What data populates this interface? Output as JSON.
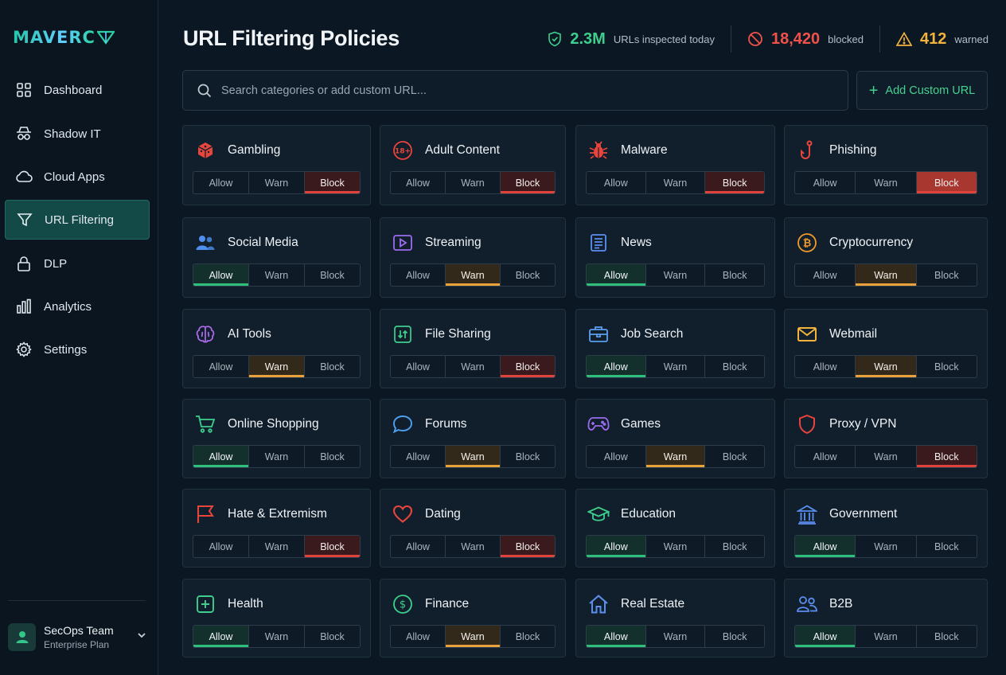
{
  "app": {
    "logo_text": "MAVERC"
  },
  "sidebar": {
    "items": [
      {
        "label": "Dashboard",
        "icon": "grid-icon",
        "active": false
      },
      {
        "label": "Shadow IT",
        "icon": "spy-icon",
        "active": false
      },
      {
        "label": "Cloud Apps",
        "icon": "cloud-icon",
        "active": false
      },
      {
        "label": "URL Filtering",
        "icon": "filter-icon",
        "active": true
      },
      {
        "label": "DLP",
        "icon": "lock-icon",
        "active": false
      },
      {
        "label": "Analytics",
        "icon": "bar-chart-icon",
        "active": false
      },
      {
        "label": "Settings",
        "icon": "gear-icon",
        "active": false
      }
    ],
    "account": {
      "name": "SecOps Team",
      "plan": "Enterprise Plan"
    }
  },
  "header": {
    "title": "URL Filtering Policies",
    "stats": [
      {
        "value": "2.3M",
        "label": "URLs inspected today",
        "color": "#3ecf8e",
        "icon": "shield-check-icon"
      },
      {
        "value": "18,420",
        "label": "blocked",
        "color": "#f0524b",
        "icon": "ban-icon"
      },
      {
        "value": "412",
        "label": "warned",
        "color": "#f3b23c",
        "icon": "warning-icon"
      }
    ]
  },
  "search": {
    "placeholder": "Search categories or add custom URL...",
    "value": ""
  },
  "actions": {
    "add_custom_url": "Add Custom URL"
  },
  "policy_options": [
    "Allow",
    "Warn",
    "Block"
  ],
  "colors": {
    "allow": "#2fbf7d",
    "warn": "#e9a23b",
    "block": "#e0433c",
    "accent": "#134a47"
  },
  "categories": [
    {
      "name": "Gambling",
      "icon": "dice-icon",
      "icon_color": "#e8453c",
      "policy": "Block"
    },
    {
      "name": "Adult Content",
      "icon": "age-18-icon",
      "icon_color": "#e8453c",
      "policy": "Block"
    },
    {
      "name": "Malware",
      "icon": "bug-icon",
      "icon_color": "#e8453c",
      "policy": "Block"
    },
    {
      "name": "Phishing",
      "icon": "hook-icon",
      "icon_color": "#e8453c",
      "policy": "Block"
    },
    {
      "name": "Social Media",
      "icon": "users-icon",
      "icon_color": "#4f8ff0",
      "policy": "Allow"
    },
    {
      "name": "Streaming",
      "icon": "play-icon",
      "icon_color": "#9b6cf0",
      "policy": "Warn"
    },
    {
      "name": "News",
      "icon": "newspaper-icon",
      "icon_color": "#5b8ff0",
      "policy": "Allow"
    },
    {
      "name": "Cryptocurrency",
      "icon": "bitcoin-icon",
      "icon_color": "#f09a2c",
      "policy": "Warn"
    },
    {
      "name": "AI Tools",
      "icon": "brain-icon",
      "icon_color": "#b06cf0",
      "policy": "Warn"
    },
    {
      "name": "File Sharing",
      "icon": "file-transfer-icon",
      "icon_color": "#3ecf8e",
      "policy": "Block"
    },
    {
      "name": "Job Search",
      "icon": "briefcase-icon",
      "icon_color": "#5b9ff0",
      "policy": "Allow"
    },
    {
      "name": "Webmail",
      "icon": "mail-icon",
      "icon_color": "#f3b23c",
      "policy": "Warn"
    },
    {
      "name": "Online Shopping",
      "icon": "cart-icon",
      "icon_color": "#3ecf8e",
      "policy": "Allow"
    },
    {
      "name": "Forums",
      "icon": "chat-bubble-icon",
      "icon_color": "#4f9ff0",
      "policy": "Warn"
    },
    {
      "name": "Games",
      "icon": "gamepad-icon",
      "icon_color": "#9b6cf0",
      "policy": "Warn"
    },
    {
      "name": "Proxy / VPN",
      "icon": "shield-icon",
      "icon_color": "#e8453c",
      "policy": "Block"
    },
    {
      "name": "Hate & Extremism",
      "icon": "flag-icon",
      "icon_color": "#e8453c",
      "policy": "Block"
    },
    {
      "name": "Dating",
      "icon": "heart-icon",
      "icon_color": "#e8453c",
      "policy": "Block"
    },
    {
      "name": "Education",
      "icon": "graduation-cap-icon",
      "icon_color": "#3ecf8e",
      "policy": "Allow"
    },
    {
      "name": "Government",
      "icon": "institution-icon",
      "icon_color": "#5b8ff0",
      "policy": "Allow"
    },
    {
      "name": "Health",
      "icon": "plus-square-icon",
      "icon_color": "#3ecf8e",
      "policy": "Allow"
    },
    {
      "name": "Finance",
      "icon": "dollar-circle-icon",
      "icon_color": "#3ecf8e",
      "policy": "Warn"
    },
    {
      "name": "Real Estate",
      "icon": "house-icon",
      "icon_color": "#5b8ff0",
      "policy": "Allow"
    },
    {
      "name": "B2B",
      "icon": "partners-icon",
      "icon_color": "#5b8ff0",
      "policy": "Allow"
    }
  ]
}
